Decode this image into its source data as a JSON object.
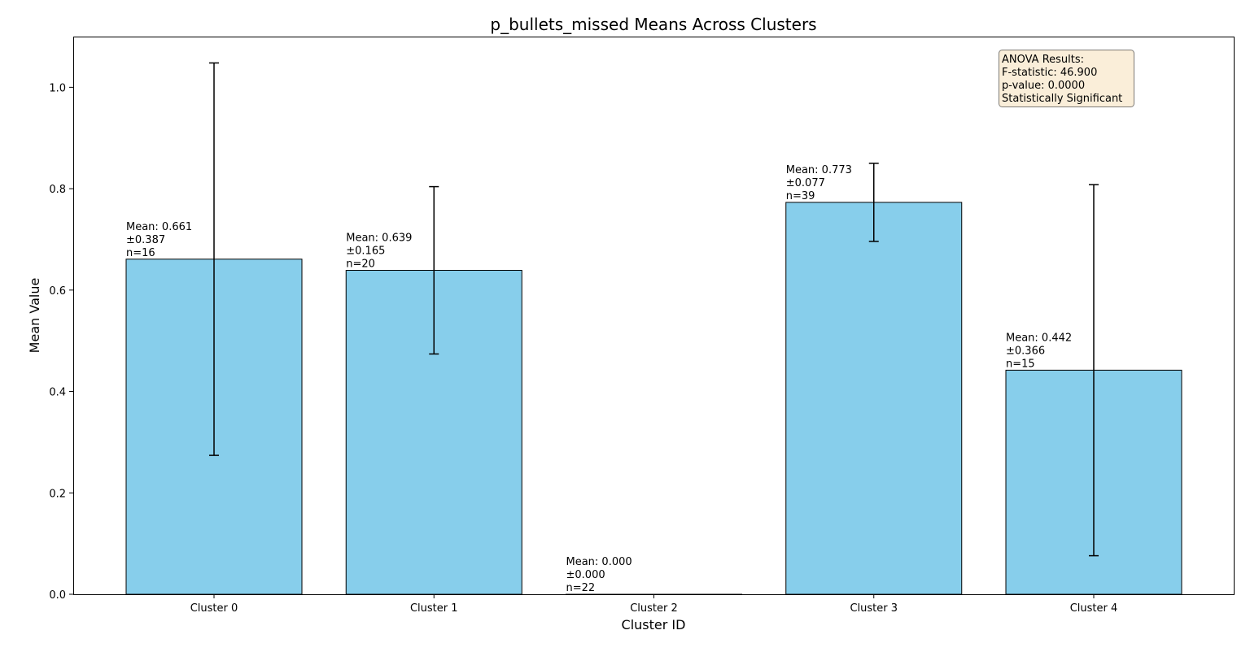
{
  "chart_data": {
    "type": "bar",
    "title": "p_bullets_missed Means Across Clusters",
    "xlabel": "Cluster ID",
    "ylabel": "Mean Value",
    "categories": [
      "Cluster 0",
      "Cluster 1",
      "Cluster 2",
      "Cluster 3",
      "Cluster 4"
    ],
    "values": [
      0.661,
      0.639,
      0.0,
      0.773,
      0.442
    ],
    "errors": [
      0.387,
      0.165,
      0.0,
      0.077,
      0.366
    ],
    "n": [
      16,
      20,
      22,
      39,
      15
    ],
    "bar_labels": [
      [
        "Mean: 0.661",
        "±0.387",
        "n=16"
      ],
      [
        "Mean: 0.639",
        "±0.165",
        "n=20"
      ],
      [
        "Mean: 0.000",
        "±0.000",
        "n=22"
      ],
      [
        "Mean: 0.773",
        "±0.077",
        "n=39"
      ],
      [
        "Mean: 0.442",
        "±0.366",
        "n=15"
      ]
    ],
    "ylim": [
      0,
      1.1
    ],
    "yticks": [
      0.0,
      0.2,
      0.4,
      0.6,
      0.8,
      1.0
    ],
    "ytick_labels": [
      "0.0",
      "0.2",
      "0.4",
      "0.6",
      "0.8",
      "1.0"
    ],
    "grid": false,
    "bar_color": "#87CEEB",
    "edge_color": "#000000",
    "annotation": {
      "lines": [
        "ANOVA Results:",
        "F-statistic: 46.900",
        "p-value: 0.0000",
        "Statistically Significant"
      ],
      "placement": "top-right",
      "background": "#F5DEB3"
    }
  }
}
